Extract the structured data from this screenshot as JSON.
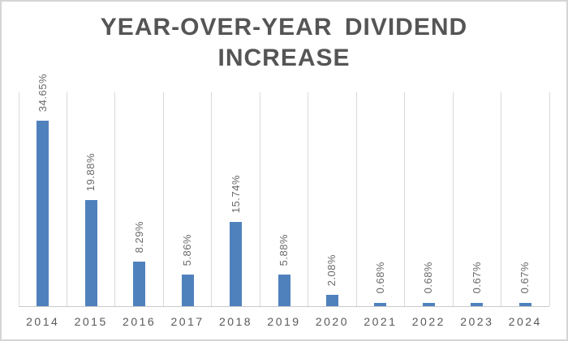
{
  "chart_data": {
    "type": "bar",
    "title": "YEAR-OVER-YEAR DIVIDEND INCREASE",
    "title_lines": [
      "YEAR-OVER-YEAR DIVIDEND",
      "INCREASE"
    ],
    "categories": [
      "2014",
      "2015",
      "2016",
      "2017",
      "2018",
      "2019",
      "2020",
      "2021",
      "2022",
      "2023",
      "2024"
    ],
    "values": [
      34.65,
      19.88,
      8.29,
      5.86,
      15.74,
      5.88,
      2.08,
      0.68,
      0.68,
      0.67,
      0.67
    ],
    "data_labels": [
      "34.65%",
      "19.88%",
      "8.29%",
      "5.86%",
      "15.74%",
      "5.88%",
      "2.08%",
      "0.68%",
      "0.68%",
      "0.67%",
      "0.67%"
    ],
    "xlabel": "",
    "ylabel": "",
    "ylim": [
      0,
      40
    ],
    "grid": "vertical category boundaries only",
    "legend_position": "none",
    "data_label_rotation": "vertical-bottom-to-top",
    "colors": {
      "bar": "#4f81bd",
      "gridline": "#d9d9d9",
      "axis_line": "#c9c9c9",
      "title_text": "#555555",
      "data_label_text": "#6a6a6a",
      "tick_label_text": "#595959",
      "background": "#ffffff",
      "frame_border": "#d5d5d5"
    }
  }
}
